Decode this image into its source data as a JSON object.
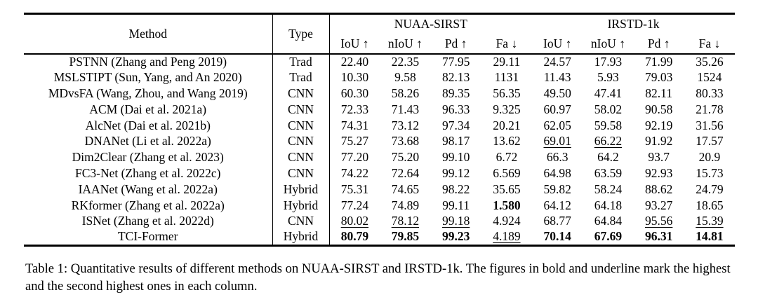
{
  "table": {
    "headers": {
      "method": "Method",
      "type": "Type",
      "group_nuaa": "NUAA-SIRST",
      "group_irstd": "IRSTD-1k",
      "metrics": [
        "IoU ↑",
        "nIoU ↑",
        "Pd ↑",
        "Fa ↓",
        "IoU ↑",
        "nIoU ↑",
        "Pd ↑",
        "Fa ↓"
      ]
    },
    "rows": [
      {
        "method": "PSTNN (Zhang and Peng 2019)",
        "type": "Trad",
        "c": [
          "22.40",
          "22.35",
          "77.95",
          "29.11",
          "24.57",
          "17.93",
          "71.99",
          "35.26"
        ]
      },
      {
        "method": "MSLSTIPT (Sun, Yang, and An 2020)",
        "type": "Trad",
        "c": [
          "10.30",
          "9.58",
          "82.13",
          "1131",
          "11.43",
          "5.93",
          "79.03",
          "1524"
        ]
      },
      {
        "method": "MDvsFA (Wang, Zhou, and Wang 2019)",
        "type": "CNN",
        "c": [
          "60.30",
          "58.26",
          "89.35",
          "56.35",
          "49.50",
          "47.41",
          "82.11",
          "80.33"
        ]
      },
      {
        "method": "ACM (Dai et al. 2021a)",
        "type": "CNN",
        "c": [
          "72.33",
          "71.43",
          "96.33",
          "9.325",
          "60.97",
          "58.02",
          "90.58",
          "21.78"
        ]
      },
      {
        "method": "AlcNet (Dai et al. 2021b)",
        "type": "CNN",
        "c": [
          "74.31",
          "73.12",
          "97.34",
          "20.21",
          "62.05",
          "59.58",
          "92.19",
          "31.56"
        ]
      },
      {
        "method": "DNANet (Li et al. 2022a)",
        "type": "CNN",
        "c": [
          "75.27",
          "73.68",
          "98.17",
          "13.62",
          "69.01",
          "66.22",
          "91.92",
          "17.57"
        ]
      },
      {
        "method": "Dim2Clear (Zhang et al. 2023)",
        "type": "CNN",
        "c": [
          "77.20",
          "75.20",
          "99.10",
          "6.72",
          "66.3",
          "64.2",
          "93.7",
          "20.9"
        ]
      },
      {
        "method": "FC3-Net (Zhang et al. 2022c)",
        "type": "CNN",
        "c": [
          "74.22",
          "72.64",
          "99.12",
          "6.569",
          "64.98",
          "63.59",
          "92.93",
          "15.73"
        ]
      },
      {
        "method": "IAANet (Wang et al. 2022a)",
        "type": "Hybrid",
        "c": [
          "75.31",
          "74.65",
          "98.22",
          "35.65",
          "59.82",
          "58.24",
          "88.62",
          "24.79"
        ]
      },
      {
        "method": "RKformer (Zhang et al. 2022a)",
        "type": "Hybrid",
        "c": [
          "77.24",
          "74.89",
          "99.11",
          "1.580",
          "64.12",
          "64.18",
          "93.27",
          "18.65"
        ]
      },
      {
        "method": "ISNet (Zhang et al. 2022d)",
        "type": "CNN",
        "c": [
          "80.02",
          "78.12",
          "99.18",
          "4.924",
          "68.77",
          "64.84",
          "95.56",
          "15.39"
        ]
      },
      {
        "method": "TCI-Former",
        "type": "Hybrid",
        "c": [
          "80.79",
          "79.85",
          "99.23",
          "4.189",
          "70.14",
          "67.69",
          "96.31",
          "14.81"
        ]
      }
    ]
  },
  "caption": "Table 1: Quantitative results of different methods on NUAA-SIRST and IRSTD-1k. The figures in bold and underline mark the highest and the second highest ones in each column."
}
